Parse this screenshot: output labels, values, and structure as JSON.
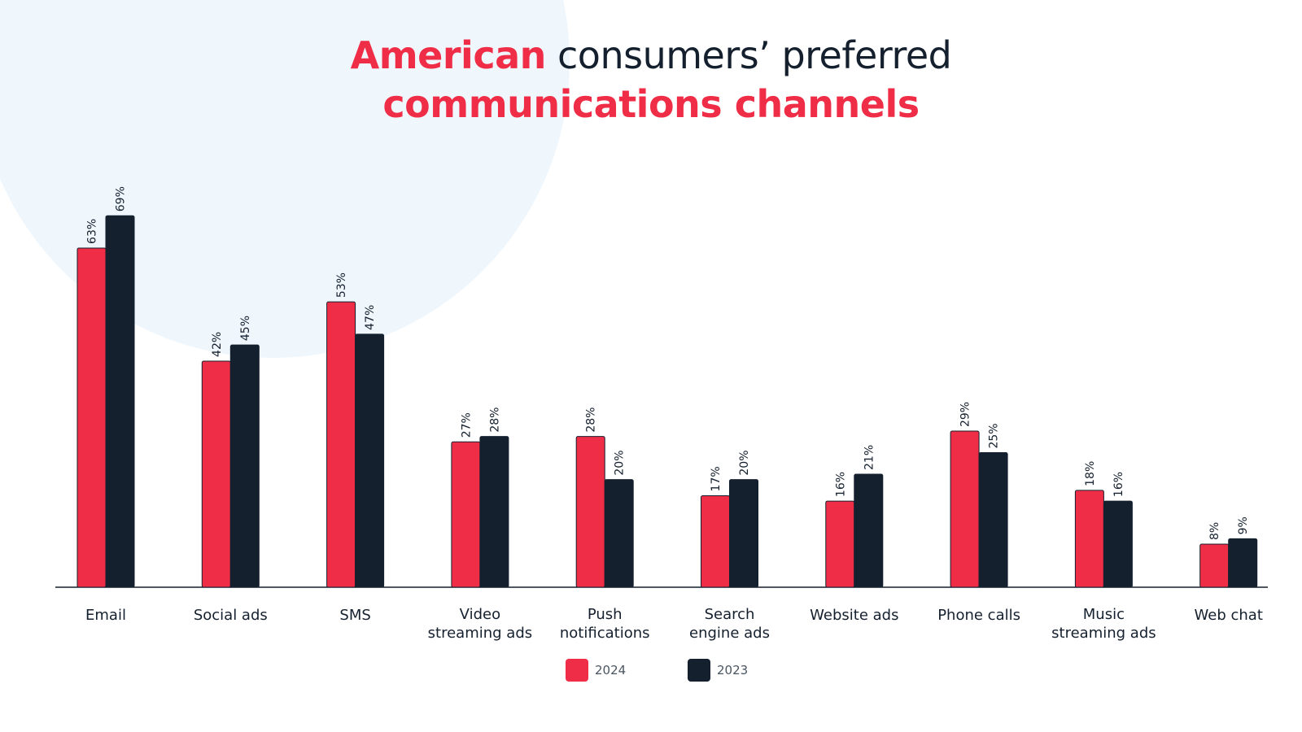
{
  "title": {
    "line1_accent": "American",
    "line1_plain": " consumers’ preferred",
    "line2_accent": "communications channels"
  },
  "colors": {
    "accent": "#f02d47",
    "dark": "#15202e",
    "background_circle": "#eff7fd"
  },
  "legend": [
    {
      "label": "2024",
      "color": "#f02d47"
    },
    {
      "label": "2023",
      "color": "#15202e"
    }
  ],
  "chart_data": {
    "type": "bar",
    "categories": [
      [
        "Email"
      ],
      [
        "Social ads"
      ],
      [
        "SMS"
      ],
      [
        "Video",
        "streaming ads"
      ],
      [
        "Push",
        "notifications"
      ],
      [
        "Search",
        "engine ads"
      ],
      [
        "Website ads"
      ],
      [
        "Phone calls"
      ],
      [
        "Music",
        "streaming ads"
      ],
      [
        "Web chat"
      ]
    ],
    "series": [
      {
        "name": "2024",
        "color": "#f02d47",
        "values": [
          63,
          42,
          53,
          27,
          28,
          17,
          16,
          29,
          18,
          8
        ]
      },
      {
        "name": "2023",
        "color": "#15202e",
        "values": [
          69,
          45,
          47,
          28,
          20,
          20,
          21,
          25,
          16,
          9
        ]
      }
    ],
    "value_suffix": "%",
    "ylim": [
      0,
      70
    ],
    "grid": false,
    "legend_position": "bottom-center"
  }
}
